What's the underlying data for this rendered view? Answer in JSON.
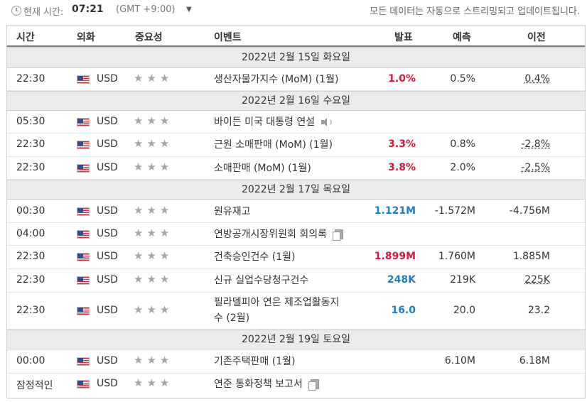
{
  "topbar": {
    "time_label": "현재 시간:",
    "time_value": "07:21",
    "timezone": "(GMT +9:00)",
    "notice": "모든 데이터는 자동으로 스트리밍되고 업데이트됩니다."
  },
  "columns": {
    "time": "시간",
    "currency": "외화",
    "importance": "중요성",
    "event": "이벤트",
    "actual": "발표",
    "forecast": "예측",
    "previous": "이전"
  },
  "stars": "★★★",
  "days": [
    {
      "date": "2022년 2월 15일 화요일",
      "events": [
        {
          "time": "22:30",
          "currency": "USD",
          "event": "생산자물가지수 (MoM) (1월)",
          "actual": "1.0%",
          "actual_color": "red",
          "forecast": "0.5%",
          "previous": "0.4%",
          "previous_color": "red"
        }
      ]
    },
    {
      "date": "2022년 2월 16일 수요일",
      "events": [
        {
          "time": "05:30",
          "currency": "USD",
          "event": "바이든 미국 대통령 연설",
          "icon": "speaker-icon",
          "actual": "",
          "forecast": "",
          "previous": ""
        },
        {
          "time": "22:30",
          "currency": "USD",
          "event": "근원 소매판매 (MoM) (1월)",
          "actual": "3.3%",
          "actual_color": "red",
          "forecast": "0.8%",
          "previous": "-2.8%",
          "previous_color": "blue"
        },
        {
          "time": "22:30",
          "currency": "USD",
          "event": "소매판매 (MoM) (1월)",
          "actual": "3.8%",
          "actual_color": "red",
          "forecast": "2.0%",
          "previous": "-2.5%",
          "previous_color": "blue"
        }
      ]
    },
    {
      "date": "2022년 2월 17일 목요일",
      "events": [
        {
          "time": "00:30",
          "currency": "USD",
          "event": "원유재고",
          "actual": "1.121M",
          "actual_color": "blue",
          "forecast": "-1.572M",
          "previous": "-4.756M"
        },
        {
          "time": "04:00",
          "currency": "USD",
          "event": "연방공개시장위원회 회의록",
          "icon": "document-icon",
          "actual": "",
          "forecast": "",
          "previous": ""
        },
        {
          "time": "22:30",
          "currency": "USD",
          "event": "건축승인건수 (1월)",
          "actual": "1.899M",
          "actual_color": "red",
          "forecast": "1.760M",
          "previous": "1.885M"
        },
        {
          "time": "22:30",
          "currency": "USD",
          "event": "신규 실업수당청구건수",
          "actual": "248K",
          "actual_color": "blue",
          "forecast": "219K",
          "previous": "225K",
          "previous_color": "blue"
        },
        {
          "time": "22:30",
          "currency": "USD",
          "event_line1": "필라델피아 연은 제조업활동지",
          "event_line2": "수 (2월)",
          "actual": "16.0",
          "actual_color": "blue",
          "forecast": "20.0",
          "previous": "23.2"
        }
      ]
    },
    {
      "date": "2022년 2월 19일 토요일",
      "events": [
        {
          "time": "00:00",
          "currency": "USD",
          "event": "기존주택판매 (1월)",
          "actual": "",
          "forecast": "6.10M",
          "previous": "6.18M"
        },
        {
          "time": "잠정적인",
          "currency": "USD",
          "event": "연준 통화정책 보고서",
          "icon": "document-icon",
          "actual": "",
          "forecast": "",
          "previous": ""
        }
      ]
    }
  ]
}
